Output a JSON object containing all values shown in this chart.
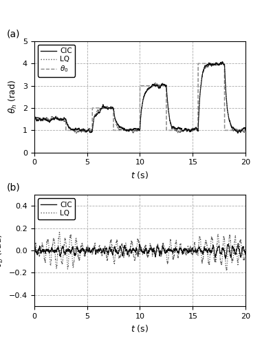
{
  "title_a": "(a)",
  "title_b": "(b)",
  "xlabel": "$t$ (s)",
  "ylabel_a": "$\\theta_h$ (rad)",
  "ylabel_b": "$\\theta_b$ (rad)",
  "xlim": [
    0,
    20
  ],
  "ylim_a": [
    0,
    5
  ],
  "ylim_b": [
    -0.5,
    0.5
  ],
  "yticks_a": [
    0,
    1,
    2,
    3,
    4,
    5
  ],
  "yticks_b": [
    -0.4,
    -0.2,
    0,
    0.2,
    0.4
  ],
  "xticks": [
    0,
    5,
    10,
    15,
    20
  ],
  "legend_a": [
    "CIC",
    "LQ",
    "$\\theta_0$"
  ],
  "legend_b": [
    "CIC",
    "LQ"
  ],
  "cic_color": "#111111",
  "lq_color": "#555555",
  "theta0_color": "#888888",
  "grid_color": "#aaaaaa",
  "grid_linestyle": "--",
  "background": "#ffffff",
  "theta0_steps": [
    [
      0.0,
      1.5
    ],
    [
      3.0,
      1.0
    ],
    [
      5.5,
      2.0
    ],
    [
      7.5,
      1.0
    ],
    [
      10.0,
      3.0
    ],
    [
      12.5,
      1.0
    ],
    [
      15.5,
      4.0
    ],
    [
      18.0,
      1.0
    ],
    [
      20.0,
      1.0
    ]
  ]
}
